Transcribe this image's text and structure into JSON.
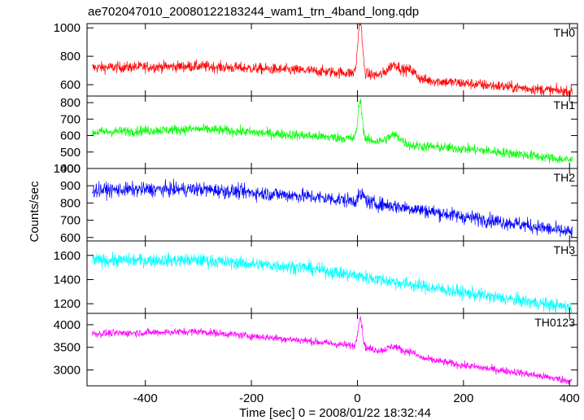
{
  "chart_data": {
    "type": "line",
    "title": "ae702047010_20080122183244_wam1_trn_4band_long.qdp",
    "xlabel": "Time [sec] 0 = 2008/01/22 18:32:44",
    "ylabel": "Counts/sec",
    "xlim": [
      -510,
      415
    ],
    "xticks": [
      -400,
      -200,
      0,
      200,
      400
    ],
    "grid": false,
    "panels": [
      {
        "name": "TH0",
        "color": "#ff0000",
        "ylim": [
          520,
          1030
        ],
        "yticks": [
          600,
          800,
          1000
        ],
        "baseline": [
          [
            -500,
            720
          ],
          [
            -300,
            730
          ],
          [
            -100,
            700
          ],
          [
            0,
            680
          ],
          [
            100,
            640
          ],
          [
            200,
            610
          ],
          [
            300,
            580
          ],
          [
            400,
            550
          ]
        ],
        "noise": 28,
        "spikes": [
          {
            "x": 5,
            "height": 380,
            "width": 4
          },
          {
            "x": 70,
            "height": 90,
            "width": 12
          },
          {
            "x": 100,
            "height": 60,
            "width": 10
          }
        ]
      },
      {
        "name": "TH1",
        "color": "#00ff00",
        "ylim": [
          400,
          840
        ],
        "yticks": [
          400,
          500,
          600,
          700,
          800
        ],
        "baseline": [
          [
            -500,
            620
          ],
          [
            -300,
            640
          ],
          [
            -100,
            600
          ],
          [
            0,
            580
          ],
          [
            100,
            540
          ],
          [
            200,
            520
          ],
          [
            300,
            490
          ],
          [
            400,
            450
          ]
        ],
        "noise": 22,
        "spikes": [
          {
            "x": 5,
            "height": 230,
            "width": 4
          },
          {
            "x": 70,
            "height": 50,
            "width": 12
          }
        ]
      },
      {
        "name": "TH2",
        "color": "#0000ff",
        "ylim": [
          580,
          1000
        ],
        "yticks": [
          600,
          700,
          800,
          900,
          1000
        ],
        "baseline": [
          [
            -500,
            875
          ],
          [
            -300,
            880
          ],
          [
            -100,
            840
          ],
          [
            0,
            810
          ],
          [
            100,
            770
          ],
          [
            200,
            720
          ],
          [
            300,
            680
          ],
          [
            400,
            630
          ]
        ],
        "noise": 30,
        "spikes": [
          {
            "x": 8,
            "height": 40,
            "width": 6
          }
        ]
      },
      {
        "name": "TH3",
        "color": "#00ffff",
        "ylim": [
          1120,
          1720
        ],
        "yticks": [
          1200,
          1400,
          1600
        ],
        "baseline": [
          [
            -500,
            1560
          ],
          [
            -300,
            1560
          ],
          [
            -100,
            1500
          ],
          [
            0,
            1430
          ],
          [
            100,
            1360
          ],
          [
            200,
            1290
          ],
          [
            300,
            1230
          ],
          [
            400,
            1170
          ]
        ],
        "noise": 40,
        "spikes": []
      },
      {
        "name": "TH0123",
        "color": "#ff00ff",
        "ylim": [
          2650,
          4250
        ],
        "yticks": [
          3000,
          3500,
          4000
        ],
        "baseline": [
          [
            -500,
            3800
          ],
          [
            -300,
            3850
          ],
          [
            -100,
            3650
          ],
          [
            0,
            3520
          ],
          [
            100,
            3300
          ],
          [
            200,
            3100
          ],
          [
            300,
            2950
          ],
          [
            400,
            2760
          ]
        ],
        "noise": 60,
        "spikes": [
          {
            "x": 5,
            "height": 650,
            "width": 4
          },
          {
            "x": 70,
            "height": 150,
            "width": 12
          },
          {
            "x": 100,
            "height": 100,
            "width": 10
          }
        ]
      }
    ]
  }
}
